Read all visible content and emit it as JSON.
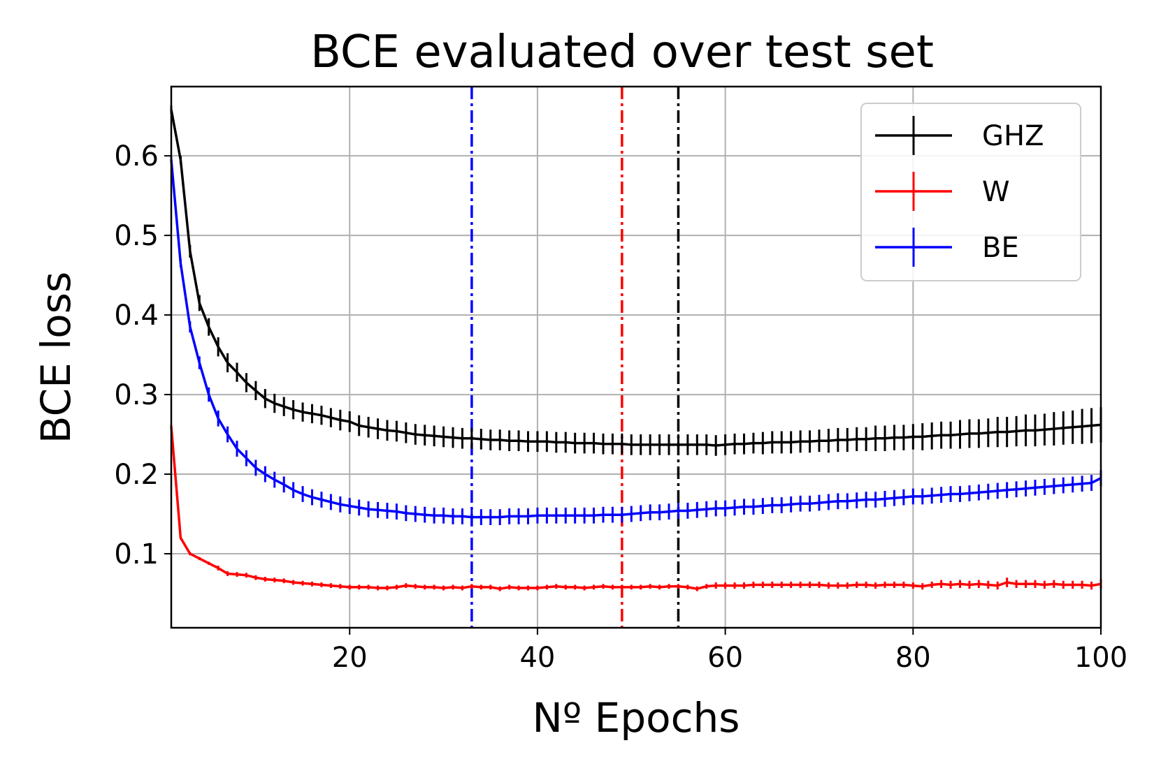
{
  "chart_data": {
    "type": "line",
    "title": "BCE evaluated over test set",
    "xlabel": "Nº Epochs",
    "ylabel": "BCE loss",
    "xlim": [
      1,
      100
    ],
    "ylim": [
      0.007,
      0.687
    ],
    "xticks": [
      20,
      40,
      60,
      80,
      100
    ],
    "yticks": [
      0.1,
      0.2,
      0.3,
      0.4,
      0.5,
      0.6
    ],
    "xtick_labels": [
      "20",
      "40",
      "60",
      "80",
      "100"
    ],
    "ytick_labels": [
      "0.1",
      "0.2",
      "0.3",
      "0.4",
      "0.5",
      "0.6"
    ],
    "grid": true,
    "legend_position": "top-right",
    "x": [
      1,
      2,
      3,
      4,
      5,
      6,
      7,
      8,
      9,
      10,
      11,
      12,
      13,
      14,
      15,
      16,
      17,
      18,
      19,
      20,
      21,
      22,
      23,
      24,
      25,
      26,
      27,
      28,
      29,
      30,
      31,
      32,
      33,
      34,
      35,
      36,
      37,
      38,
      39,
      40,
      41,
      42,
      43,
      44,
      45,
      46,
      47,
      48,
      49,
      50,
      51,
      52,
      53,
      54,
      55,
      56,
      57,
      58,
      59,
      60,
      61,
      62,
      63,
      64,
      65,
      66,
      67,
      68,
      69,
      70,
      71,
      72,
      73,
      74,
      75,
      76,
      77,
      78,
      79,
      80,
      81,
      82,
      83,
      84,
      85,
      86,
      87,
      88,
      89,
      90,
      91,
      92,
      93,
      94,
      95,
      96,
      97,
      98,
      99,
      100
    ],
    "series": [
      {
        "name": "GHZ",
        "color": "#000000",
        "values": [
          0.658,
          0.595,
          0.48,
          0.415,
          0.385,
          0.36,
          0.34,
          0.328,
          0.315,
          0.305,
          0.295,
          0.289,
          0.285,
          0.281,
          0.278,
          0.276,
          0.274,
          0.271,
          0.268,
          0.266,
          0.261,
          0.259,
          0.257,
          0.255,
          0.254,
          0.252,
          0.25,
          0.249,
          0.248,
          0.247,
          0.246,
          0.245,
          0.245,
          0.244,
          0.243,
          0.243,
          0.242,
          0.242,
          0.241,
          0.241,
          0.241,
          0.24,
          0.24,
          0.239,
          0.239,
          0.239,
          0.238,
          0.238,
          0.238,
          0.237,
          0.237,
          0.237,
          0.237,
          0.237,
          0.237,
          0.237,
          0.237,
          0.237,
          0.236,
          0.237,
          0.238,
          0.238,
          0.239,
          0.239,
          0.24,
          0.24,
          0.24,
          0.241,
          0.241,
          0.242,
          0.242,
          0.243,
          0.243,
          0.244,
          0.244,
          0.245,
          0.245,
          0.246,
          0.246,
          0.247,
          0.247,
          0.248,
          0.249,
          0.249,
          0.25,
          0.251,
          0.251,
          0.252,
          0.253,
          0.253,
          0.254,
          0.255,
          0.255,
          0.256,
          0.257,
          0.258,
          0.259,
          0.26,
          0.261,
          0.262
        ],
        "errors": [
          0.005,
          0.005,
          0.008,
          0.01,
          0.011,
          0.012,
          0.012,
          0.012,
          0.012,
          0.012,
          0.012,
          0.012,
          0.012,
          0.012,
          0.012,
          0.012,
          0.012,
          0.012,
          0.013,
          0.013,
          0.013,
          0.013,
          0.013,
          0.013,
          0.013,
          0.013,
          0.013,
          0.013,
          0.013,
          0.013,
          0.013,
          0.013,
          0.013,
          0.013,
          0.013,
          0.013,
          0.013,
          0.013,
          0.013,
          0.013,
          0.013,
          0.013,
          0.013,
          0.013,
          0.013,
          0.013,
          0.013,
          0.013,
          0.013,
          0.013,
          0.013,
          0.013,
          0.013,
          0.013,
          0.013,
          0.013,
          0.013,
          0.013,
          0.013,
          0.013,
          0.013,
          0.013,
          0.013,
          0.014,
          0.014,
          0.014,
          0.014,
          0.014,
          0.014,
          0.014,
          0.015,
          0.015,
          0.015,
          0.015,
          0.015,
          0.016,
          0.016,
          0.016,
          0.016,
          0.016,
          0.017,
          0.017,
          0.017,
          0.017,
          0.018,
          0.018,
          0.018,
          0.018,
          0.019,
          0.019,
          0.019,
          0.02,
          0.02,
          0.02,
          0.021,
          0.021,
          0.021,
          0.022,
          0.022,
          0.022
        ]
      },
      {
        "name": "W",
        "color": "#ff0000",
        "values": [
          0.26,
          0.12,
          0.1,
          0.094,
          0.088,
          0.082,
          0.075,
          0.074,
          0.073,
          0.07,
          0.068,
          0.067,
          0.066,
          0.064,
          0.063,
          0.062,
          0.061,
          0.06,
          0.059,
          0.058,
          0.058,
          0.058,
          0.057,
          0.057,
          0.058,
          0.06,
          0.059,
          0.058,
          0.058,
          0.057,
          0.058,
          0.057,
          0.059,
          0.058,
          0.058,
          0.056,
          0.058,
          0.057,
          0.057,
          0.057,
          0.058,
          0.059,
          0.058,
          0.058,
          0.057,
          0.058,
          0.059,
          0.058,
          0.058,
          0.058,
          0.058,
          0.059,
          0.058,
          0.059,
          0.059,
          0.058,
          0.056,
          0.059,
          0.06,
          0.06,
          0.06,
          0.06,
          0.061,
          0.061,
          0.061,
          0.061,
          0.061,
          0.061,
          0.061,
          0.061,
          0.06,
          0.06,
          0.06,
          0.061,
          0.061,
          0.06,
          0.061,
          0.061,
          0.061,
          0.06,
          0.059,
          0.061,
          0.062,
          0.061,
          0.062,
          0.061,
          0.062,
          0.061,
          0.06,
          0.064,
          0.062,
          0.062,
          0.062,
          0.061,
          0.062,
          0.061,
          0.061,
          0.061,
          0.06,
          0.062
        ],
        "errors": [
          0.002,
          0.002,
          0.002,
          0.002,
          0.002,
          0.003,
          0.003,
          0.003,
          0.003,
          0.003,
          0.003,
          0.003,
          0.003,
          0.003,
          0.003,
          0.003,
          0.003,
          0.003,
          0.003,
          0.003,
          0.003,
          0.003,
          0.003,
          0.003,
          0.003,
          0.003,
          0.003,
          0.003,
          0.003,
          0.003,
          0.003,
          0.003,
          0.003,
          0.003,
          0.003,
          0.003,
          0.003,
          0.003,
          0.003,
          0.003,
          0.003,
          0.003,
          0.003,
          0.003,
          0.003,
          0.003,
          0.003,
          0.003,
          0.003,
          0.003,
          0.003,
          0.003,
          0.003,
          0.003,
          0.003,
          0.003,
          0.003,
          0.003,
          0.004,
          0.004,
          0.004,
          0.004,
          0.004,
          0.004,
          0.004,
          0.004,
          0.004,
          0.004,
          0.004,
          0.004,
          0.004,
          0.004,
          0.004,
          0.004,
          0.004,
          0.004,
          0.004,
          0.004,
          0.004,
          0.004,
          0.004,
          0.004,
          0.005,
          0.005,
          0.005,
          0.005,
          0.005,
          0.005,
          0.005,
          0.006,
          0.005,
          0.005,
          0.005,
          0.005,
          0.005,
          0.005,
          0.005,
          0.005,
          0.005,
          0.006
        ]
      },
      {
        "name": "BE",
        "color": "#0000ff",
        "values": [
          0.595,
          0.465,
          0.385,
          0.34,
          0.3,
          0.27,
          0.25,
          0.232,
          0.22,
          0.208,
          0.2,
          0.193,
          0.187,
          0.18,
          0.175,
          0.171,
          0.168,
          0.165,
          0.162,
          0.16,
          0.158,
          0.156,
          0.155,
          0.154,
          0.153,
          0.151,
          0.15,
          0.149,
          0.148,
          0.148,
          0.147,
          0.147,
          0.146,
          0.146,
          0.146,
          0.146,
          0.147,
          0.147,
          0.147,
          0.148,
          0.148,
          0.148,
          0.148,
          0.148,
          0.148,
          0.148,
          0.149,
          0.149,
          0.149,
          0.15,
          0.151,
          0.152,
          0.152,
          0.153,
          0.154,
          0.154,
          0.155,
          0.156,
          0.157,
          0.157,
          0.158,
          0.159,
          0.159,
          0.16,
          0.161,
          0.161,
          0.162,
          0.163,
          0.163,
          0.164,
          0.165,
          0.166,
          0.166,
          0.167,
          0.168,
          0.168,
          0.169,
          0.17,
          0.171,
          0.172,
          0.172,
          0.173,
          0.174,
          0.175,
          0.175,
          0.176,
          0.177,
          0.178,
          0.179,
          0.18,
          0.181,
          0.182,
          0.183,
          0.184,
          0.185,
          0.186,
          0.187,
          0.188,
          0.189,
          0.195
        ],
        "errors": [
          0.004,
          0.005,
          0.007,
          0.008,
          0.009,
          0.01,
          0.01,
          0.01,
          0.01,
          0.01,
          0.01,
          0.01,
          0.01,
          0.01,
          0.01,
          0.01,
          0.01,
          0.01,
          0.01,
          0.01,
          0.01,
          0.01,
          0.01,
          0.01,
          0.01,
          0.01,
          0.01,
          0.01,
          0.01,
          0.01,
          0.01,
          0.01,
          0.01,
          0.01,
          0.01,
          0.01,
          0.01,
          0.01,
          0.01,
          0.01,
          0.01,
          0.01,
          0.01,
          0.01,
          0.01,
          0.01,
          0.01,
          0.01,
          0.01,
          0.01,
          0.01,
          0.01,
          0.01,
          0.01,
          0.01,
          0.01,
          0.01,
          0.01,
          0.01,
          0.01,
          0.01,
          0.01,
          0.01,
          0.01,
          0.01,
          0.01,
          0.01,
          0.01,
          0.01,
          0.01,
          0.01,
          0.01,
          0.01,
          0.01,
          0.01,
          0.01,
          0.01,
          0.01,
          0.01,
          0.01,
          0.01,
          0.01,
          0.01,
          0.01,
          0.01,
          0.01,
          0.01,
          0.01,
          0.01,
          0.01,
          0.01,
          0.01,
          0.01,
          0.01,
          0.01,
          0.01,
          0.01,
          0.01,
          0.01,
          0.01
        ]
      }
    ],
    "vlines": [
      {
        "x": 33,
        "color": "#0000ff",
        "style": "dash-dot"
      },
      {
        "x": 49,
        "color": "#ff0000",
        "style": "dash-dot"
      },
      {
        "x": 55,
        "color": "#000000",
        "style": "dash-dot"
      }
    ]
  }
}
